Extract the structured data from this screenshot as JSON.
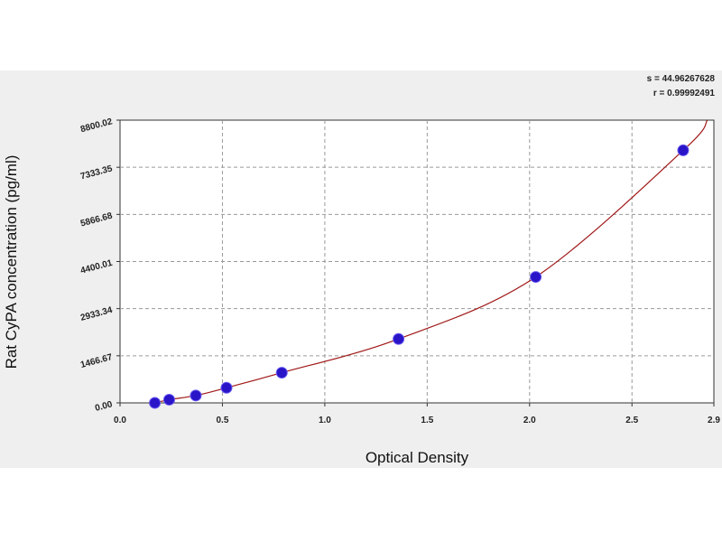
{
  "chart_data": {
    "type": "scatter",
    "xlabel": "Optical Density",
    "ylabel": "Rat CyPA concentration (pg/ml)",
    "xlim": [
      0.0,
      2.9
    ],
    "ylim": [
      0.0,
      8800.02
    ],
    "x_ticks": [
      "0.0",
      "0.5",
      "1.0",
      "1.5",
      "2.0",
      "2.5",
      "2.9"
    ],
    "x_tick_values": [
      0.0,
      0.5,
      1.0,
      1.5,
      2.0,
      2.5,
      2.9
    ],
    "y_ticks": [
      "0.00",
      "1466.67",
      "2933.34",
      "4400.01",
      "5866.68",
      "7333.35",
      "8800.02"
    ],
    "y_tick_values": [
      0.0,
      1466.67,
      2933.34,
      4400.01,
      5866.68,
      7333.35,
      8800.02
    ],
    "points": [
      {
        "x": 0.17,
        "y": 0
      },
      {
        "x": 0.24,
        "y": 100
      },
      {
        "x": 0.37,
        "y": 230
      },
      {
        "x": 0.52,
        "y": 470
      },
      {
        "x": 0.79,
        "y": 940
      },
      {
        "x": 1.36,
        "y": 1990
      },
      {
        "x": 2.03,
        "y": 3920
      },
      {
        "x": 2.75,
        "y": 7860
      }
    ],
    "fit_curve": "exponential-like fitted standard curve",
    "stats": {
      "s": "s = 44.96267628",
      "r": "r = 0.99992491"
    },
    "grid": true,
    "point_color": "#2a14c8",
    "curve_color": "#a01818"
  }
}
